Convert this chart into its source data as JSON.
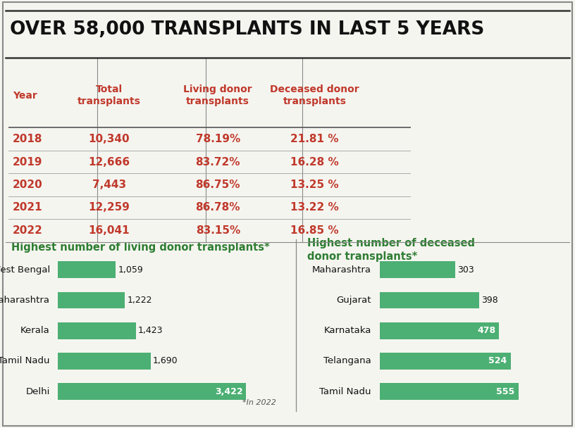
{
  "title": "OVER 58,000 TRANSPLANTS IN LAST 5 YEARS",
  "table_headers": [
    "Year",
    "Total\ntransplants",
    "Living donor\ntransplants",
    "Deceased donor\ntransplants"
  ],
  "table_rows": [
    [
      "2018",
      "10,340",
      "78.19%",
      "21.81 %"
    ],
    [
      "2019",
      "12,666",
      "83.72%",
      "16.28 %"
    ],
    [
      "2020",
      "7,443",
      "86.75%",
      "13.25 %"
    ],
    [
      "2021",
      "12,259",
      "86.78%",
      "13.22 %"
    ],
    [
      "2022",
      "16,041",
      "83.15%",
      "16.85 %"
    ]
  ],
  "living_title": "Highest number of living donor transplants*",
  "living_labels": [
    "Delhi",
    "Tamil Nadu",
    "Kerala",
    "Maharashtra",
    "West Bengal"
  ],
  "living_values": [
    3422,
    1690,
    1423,
    1222,
    1059
  ],
  "deceased_title": "Highest number of deceased\ndonor transplants*",
  "deceased_labels": [
    "Tamil Nadu",
    "Telangana",
    "Karnataka",
    "Gujarat",
    "Maharashtra"
  ],
  "deceased_values": [
    555,
    524,
    478,
    398,
    303
  ],
  "bar_color": "#4caf73",
  "footnote": "*In 2022",
  "title_color": "#111111",
  "header_color": "#c0392b",
  "data_color": "#c0392b",
  "section_title_color": "#2e7d32",
  "background_color": "#f5f5f0",
  "line_color": "#555555",
  "title_fontsize": 19,
  "header_fontsize": 10,
  "table_fontsize": 11,
  "bar_label_fontsize": 9,
  "section_title_fontsize": 10.5
}
